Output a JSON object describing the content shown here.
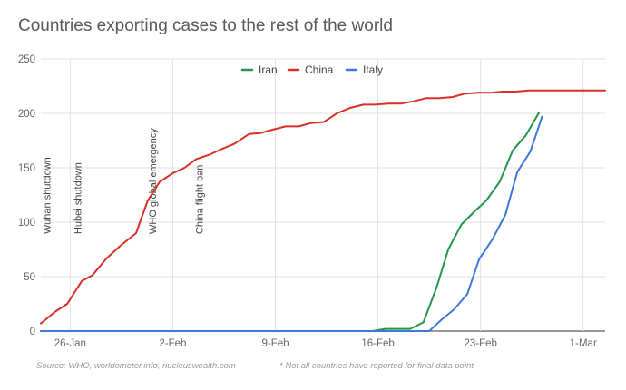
{
  "chart_data": {
    "type": "line",
    "title": "Countries exporting cases to the rest of the world",
    "xlabel": "",
    "ylabel": "",
    "ylim": [
      0,
      250
    ],
    "yticks": [
      0,
      50,
      100,
      150,
      200,
      250
    ],
    "xrange": [
      -2,
      36.5
    ],
    "xticks": [
      {
        "label": "26-Jan",
        "day": 0
      },
      {
        "label": "2-Feb",
        "day": 7
      },
      {
        "label": "9-Feb",
        "day": 14
      },
      {
        "label": "16-Feb",
        "day": 21
      },
      {
        "label": "23-Feb",
        "day": 28
      },
      {
        "label": "1-Mar",
        "day": 35
      }
    ],
    "legend": {
      "position": "top",
      "entries": [
        "Iran",
        "China",
        "Italy"
      ]
    },
    "colors": {
      "Iran": "#22964a",
      "China": "#d93025",
      "Italy": "#3d78d8",
      "grid": "#e2e2e2",
      "annotation_line": "#b3b3b3"
    },
    "series": [
      {
        "name": "China",
        "points": [
          [
            -2,
            7
          ],
          [
            -1,
            18
          ],
          [
            -0.2,
            25
          ],
          [
            0.8,
            46
          ],
          [
            1.5,
            51
          ],
          [
            2.5,
            67
          ],
          [
            3.4,
            78
          ],
          [
            4.5,
            90
          ],
          [
            5.3,
            120
          ],
          [
            6.1,
            137
          ],
          [
            7,
            145
          ],
          [
            7.8,
            150
          ],
          [
            8.6,
            158
          ],
          [
            9.5,
            162
          ],
          [
            10.3,
            167
          ],
          [
            11.2,
            172
          ],
          [
            12.2,
            181
          ],
          [
            13,
            182
          ],
          [
            13.8,
            185
          ],
          [
            14.7,
            188
          ],
          [
            15.6,
            188
          ],
          [
            16.4,
            191
          ],
          [
            17.3,
            192
          ],
          [
            18.2,
            200
          ],
          [
            19.1,
            205
          ],
          [
            20,
            208
          ],
          [
            20.8,
            208
          ],
          [
            21.7,
            209
          ],
          [
            22.6,
            209
          ],
          [
            23.4,
            211
          ],
          [
            24.3,
            214
          ],
          [
            25.2,
            214
          ],
          [
            26.1,
            215
          ],
          [
            26.9,
            218
          ],
          [
            27.8,
            219
          ],
          [
            28.7,
            219
          ],
          [
            29.5,
            220
          ],
          [
            30.4,
            220
          ],
          [
            31.3,
            221
          ],
          [
            32.1,
            221
          ],
          [
            33,
            221
          ],
          [
            33.9,
            221
          ],
          [
            34.8,
            221
          ],
          [
            35.7,
            221
          ],
          [
            36.5,
            221
          ]
        ]
      },
      {
        "name": "Iran",
        "points": [
          [
            -2,
            0
          ],
          [
            20.6,
            0
          ],
          [
            21.5,
            2
          ],
          [
            22.3,
            2
          ],
          [
            23.2,
            2
          ],
          [
            24.1,
            8
          ],
          [
            25,
            40
          ],
          [
            25.8,
            75
          ],
          [
            26.7,
            98
          ],
          [
            27.6,
            110
          ],
          [
            28.4,
            120
          ],
          [
            29.3,
            137
          ],
          [
            30.2,
            166
          ],
          [
            31.1,
            180
          ],
          [
            32,
            201
          ]
        ]
      },
      {
        "name": "Italy",
        "points": [
          [
            -2,
            0
          ],
          [
            24.5,
            0
          ],
          [
            25.3,
            10
          ],
          [
            26.2,
            20
          ],
          [
            27.1,
            34
          ],
          [
            27.9,
            66
          ],
          [
            28.8,
            84
          ],
          [
            29.7,
            107
          ],
          [
            30.5,
            146
          ],
          [
            31.4,
            165
          ],
          [
            32.2,
            197
          ]
        ]
      }
    ],
    "annotations": [
      {
        "label": "Wuhan shutdown",
        "day": -1.6
      },
      {
        "label": "Hubei shutdown",
        "day": 0.5
      },
      {
        "label": "WHO global emergency",
        "day": 5.6
      },
      {
        "label": "China flight ban",
        "day": 8.8
      }
    ],
    "vertical_lines": [
      {
        "day": 6.2
      }
    ]
  },
  "footer": {
    "source": "Source: WHO, worldometer.info, nucleuswealth.com",
    "note": "* Not all countries have reported for final data point"
  }
}
